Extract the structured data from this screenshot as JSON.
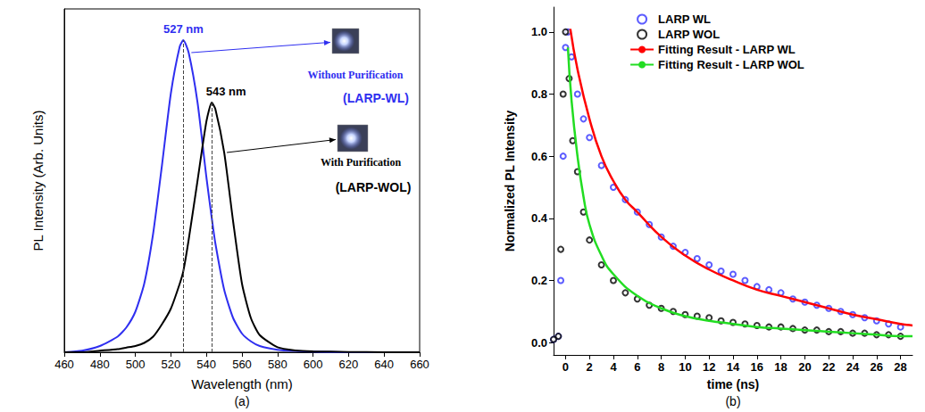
{
  "chart_data": [
    {
      "type": "line",
      "panel_label": "(a)",
      "x_label": "Wavelength (nm)",
      "y_label": "PL Intensity (Arb. Units)",
      "xlim": [
        460,
        660
      ],
      "xticks": [
        460,
        480,
        500,
        520,
        540,
        560,
        580,
        600,
        620,
        640,
        660
      ],
      "ylim": [
        0,
        1.1
      ],
      "tick_labels": "x",
      "grid": false,
      "x": [
        460,
        470,
        480,
        490,
        495,
        500,
        505,
        510,
        515,
        520,
        525,
        527,
        530,
        535,
        540,
        543,
        545,
        550,
        555,
        560,
        565,
        570,
        580,
        590,
        600,
        620,
        640,
        660
      ],
      "series": [
        {
          "name": "(LARP-WL)",
          "color": "#2f2ff0",
          "line_style": "solid",
          "peak_label": "527 nm",
          "annotation": "Without Purification",
          "values": [
            0,
            0.005,
            0.02,
            0.05,
            0.08,
            0.13,
            0.22,
            0.38,
            0.6,
            0.83,
            0.98,
            1.0,
            0.96,
            0.8,
            0.56,
            0.43,
            0.35,
            0.2,
            0.11,
            0.06,
            0.035,
            0.02,
            0.008,
            0.004,
            0.002,
            0,
            0,
            0
          ]
        },
        {
          "name": "(LARP-WOL)",
          "color": "#000000",
          "line_style": "solid",
          "peak_label": "543 nm",
          "annotation": "With Purification",
          "values": [
            0,
            0,
            0.005,
            0.01,
            0.015,
            0.02,
            0.03,
            0.05,
            0.09,
            0.14,
            0.22,
            0.26,
            0.36,
            0.55,
            0.74,
            0.8,
            0.78,
            0.64,
            0.42,
            0.22,
            0.11,
            0.055,
            0.016,
            0.006,
            0.003,
            0.001,
            0,
            0
          ]
        }
      ]
    },
    {
      "type": "scatter",
      "panel_label": "(b)",
      "x_label": "time (ns)",
      "y_label": "Normalized PL Intensity",
      "xlim": [
        -1,
        29
      ],
      "xticks": [
        0,
        2,
        4,
        6,
        8,
        10,
        12,
        14,
        16,
        18,
        20,
        22,
        24,
        26,
        28
      ],
      "ylim": [
        -0.04,
        1.08
      ],
      "yticks": [
        {
          "value": 0,
          "label": "0.0"
        },
        0.2,
        0.4,
        0.6,
        0.8,
        {
          "value": 1,
          "label": "1.0"
        }
      ],
      "grid": false,
      "legend": "upper right",
      "series": [
        {
          "name": "LARP WL",
          "type": "scatter",
          "marker": "open_circle",
          "color": "#3333ff",
          "x": [
            -1,
            -0.6,
            -0.4,
            -0.2,
            0,
            0.2,
            0.5,
            1,
            1.5,
            2,
            3,
            4,
            5,
            6,
            7,
            8,
            9,
            10,
            11,
            12,
            13,
            14,
            15,
            16,
            17,
            18,
            19,
            20,
            21,
            22,
            23,
            24,
            25,
            26,
            27,
            28
          ],
          "values": [
            0.01,
            0.02,
            0.2,
            0.6,
            0.95,
            1.0,
            0.92,
            0.8,
            0.72,
            0.66,
            0.57,
            0.5,
            0.46,
            0.42,
            0.38,
            0.34,
            0.31,
            0.29,
            0.27,
            0.25,
            0.23,
            0.22,
            0.2,
            0.18,
            0.17,
            0.16,
            0.14,
            0.13,
            0.12,
            0.11,
            0.1,
            0.09,
            0.08,
            0.07,
            0.06,
            0.05
          ]
        },
        {
          "name": "LARP WOL",
          "type": "scatter",
          "marker": "open_circle",
          "color": "#000000",
          "x": [
            -1,
            -0.6,
            -0.4,
            -0.2,
            0,
            0.3,
            0.6,
            1,
            1.5,
            2,
            3,
            4,
            5,
            6,
            7,
            8,
            9,
            10,
            11,
            12,
            13,
            14,
            15,
            16,
            17,
            18,
            19,
            20,
            21,
            22,
            23,
            24,
            25,
            26,
            27,
            28
          ],
          "values": [
            0.01,
            0.02,
            0.3,
            0.8,
            1.0,
            0.85,
            0.65,
            0.55,
            0.42,
            0.33,
            0.25,
            0.2,
            0.16,
            0.14,
            0.12,
            0.11,
            0.1,
            0.09,
            0.085,
            0.08,
            0.07,
            0.065,
            0.06,
            0.055,
            0.05,
            0.05,
            0.045,
            0.04,
            0.04,
            0.035,
            0.035,
            0.03,
            0.03,
            0.025,
            0.025,
            0.02
          ]
        },
        {
          "name": "Fitting Result - LARP WL",
          "type": "line",
          "line_style": "solid",
          "color": "#ff0000",
          "x": [
            0.4,
            1,
            2,
            3,
            4,
            5,
            6,
            8,
            10,
            12,
            14,
            16,
            18,
            20,
            22,
            24,
            26,
            28,
            29
          ],
          "values": [
            1.01,
            0.88,
            0.72,
            0.6,
            0.52,
            0.46,
            0.42,
            0.34,
            0.28,
            0.235,
            0.2,
            0.17,
            0.15,
            0.13,
            0.11,
            0.09,
            0.075,
            0.06,
            0.055
          ]
        },
        {
          "name": "Fitting Result - LARP WOL",
          "type": "line",
          "line_style": "solid",
          "color": "#22dd22",
          "x": [
            0.2,
            0.5,
            1,
            1.5,
            2,
            3,
            4,
            6,
            8,
            10,
            12,
            14,
            16,
            18,
            20,
            22,
            24,
            26,
            28,
            29
          ],
          "values": [
            0.95,
            0.78,
            0.6,
            0.47,
            0.38,
            0.28,
            0.22,
            0.15,
            0.11,
            0.085,
            0.07,
            0.06,
            0.05,
            0.045,
            0.04,
            0.035,
            0.03,
            0.025,
            0.02,
            0.02
          ]
        }
      ]
    }
  ]
}
